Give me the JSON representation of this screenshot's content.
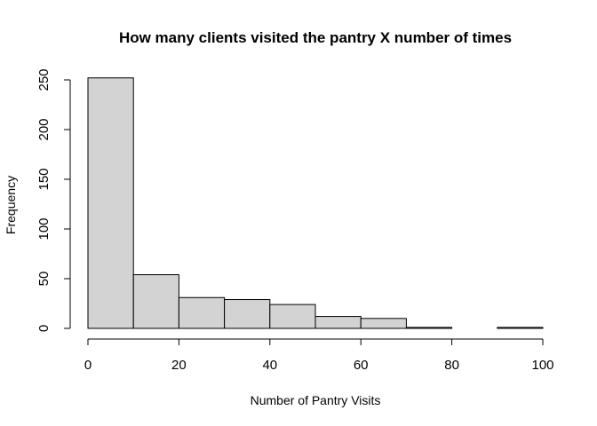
{
  "chart_data": {
    "type": "bar",
    "title": "How many clients visited the pantry X number of times",
    "xlabel": "Number of Pantry Visits",
    "ylabel": "Frequency",
    "bins": [
      {
        "from": 0,
        "to": 10,
        "value": 252
      },
      {
        "from": 10,
        "to": 20,
        "value": 54
      },
      {
        "from": 20,
        "to": 30,
        "value": 31
      },
      {
        "from": 30,
        "to": 40,
        "value": 29
      },
      {
        "from": 40,
        "to": 50,
        "value": 24
      },
      {
        "from": 50,
        "to": 60,
        "value": 12
      },
      {
        "from": 60,
        "to": 70,
        "value": 10
      },
      {
        "from": 70,
        "to": 80,
        "value": 1
      },
      {
        "from": 80,
        "to": 90,
        "value": 0
      },
      {
        "from": 90,
        "to": 100,
        "value": 1
      }
    ],
    "xlim": [
      0,
      100
    ],
    "ylim": [
      0,
      250
    ],
    "x_ticks": [
      0,
      20,
      40,
      60,
      80,
      100
    ],
    "y_ticks": [
      0,
      50,
      100,
      150,
      200,
      250
    ],
    "grid": false,
    "bar_fill": "#d3d3d3",
    "bar_stroke": "#000000"
  }
}
